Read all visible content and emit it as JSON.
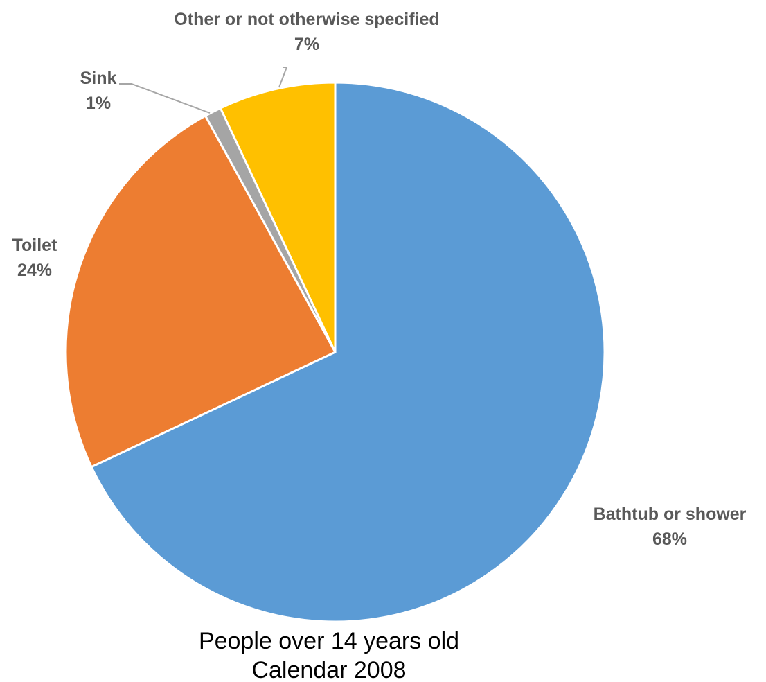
{
  "chart_data": {
    "type": "pie",
    "title": "",
    "caption": [
      "People over 14 years old",
      "Calendar 2008"
    ],
    "slices": [
      {
        "label": "Bathtub or shower",
        "value": 68,
        "value_label": "68%",
        "color": "#5B9BD5"
      },
      {
        "label": "Toilet",
        "value": 24,
        "value_label": "24%",
        "color": "#ED7D31"
      },
      {
        "label": "Sink",
        "value": 1,
        "value_label": "1%",
        "color": "#A5A5A5"
      },
      {
        "label": "Other or not otherwise specified",
        "value": 7,
        "value_label": "7%",
        "color": "#FFC000"
      }
    ],
    "start_angle": "12 o'clock",
    "direction": "clockwise",
    "legend": "none",
    "label_color": "#595959",
    "leader_line_color": "#A6A6A6"
  }
}
